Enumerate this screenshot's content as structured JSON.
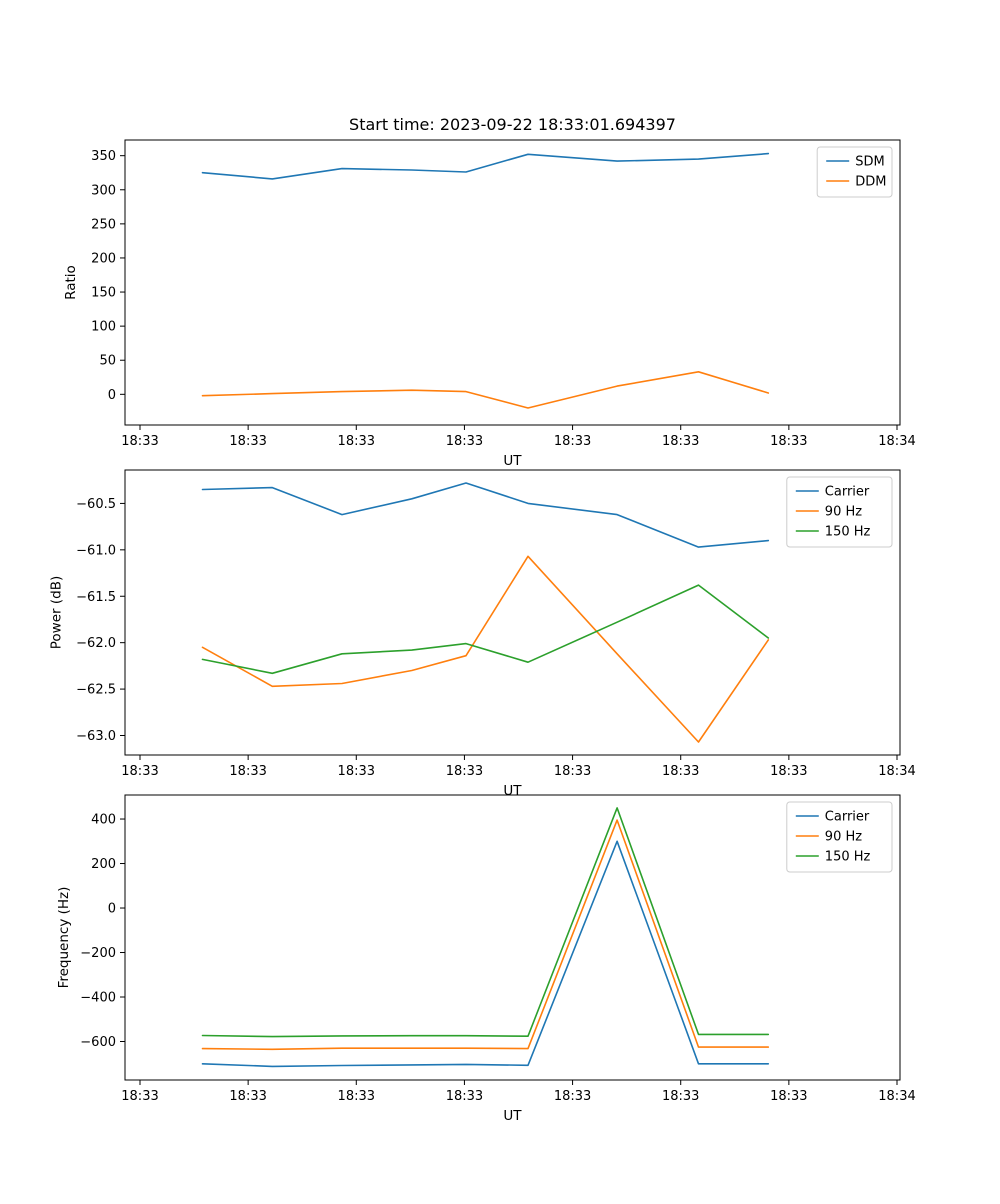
{
  "figure": {
    "title": "Start time: 2023-09-22 18:33:01.694397",
    "background": "#ffffff"
  },
  "colors": {
    "blue": "#1f77b4",
    "orange": "#ff7f0e",
    "green": "#2ca02c",
    "legend_border": "#cccccc",
    "axis": "#000000"
  },
  "chart_data": [
    {
      "name": "ratio",
      "type": "line",
      "title": "Start time: 2023-09-22 18:33:01.694397",
      "xlabel": "UT",
      "ylabel": "Ratio",
      "grid": false,
      "legend_position": "upper right",
      "xlim": [
        0,
        1
      ],
      "ylim": [
        -45,
        373
      ],
      "x": [
        0.1,
        0.19,
        0.28,
        0.37,
        0.44,
        0.52,
        0.635,
        0.74,
        0.83
      ],
      "yticks": [
        0,
        50,
        100,
        150,
        200,
        250,
        300,
        350
      ],
      "ytick_labels": [
        "0",
        "50",
        "100",
        "150",
        "200",
        "250",
        "300",
        "350"
      ],
      "xtick_labels": [
        "18:33",
        "18:33",
        "18:33",
        "18:33",
        "18:33",
        "18:33",
        "18:33",
        "18:34"
      ],
      "series": [
        {
          "name": "SDM",
          "color": "#1f77b4",
          "values": [
            325,
            316,
            331,
            329,
            326,
            352,
            342,
            345,
            353
          ]
        },
        {
          "name": "DDM",
          "color": "#ff7f0e",
          "values": [
            -2,
            1,
            4,
            6,
            4,
            -20,
            12,
            33,
            2
          ]
        }
      ]
    },
    {
      "name": "power",
      "type": "line",
      "title": "",
      "xlabel": "UT",
      "ylabel": "Power (dB)",
      "grid": false,
      "legend_position": "upper right",
      "xlim": [
        0,
        1
      ],
      "ylim": [
        -63.21,
        -60.14
      ],
      "x": [
        0.1,
        0.19,
        0.28,
        0.37,
        0.44,
        0.52,
        0.635,
        0.74,
        0.83
      ],
      "yticks": [
        -63.0,
        -62.5,
        -62.0,
        -61.5,
        -61.0,
        -60.5
      ],
      "ytick_labels": [
        "−63.0",
        "−62.5",
        "−62.0",
        "−61.5",
        "−61.0",
        "−60.5"
      ],
      "xtick_labels": [
        "18:33",
        "18:33",
        "18:33",
        "18:33",
        "18:33",
        "18:33",
        "18:33",
        "18:34"
      ],
      "series": [
        {
          "name": "Carrier",
          "color": "#1f77b4",
          "values": [
            -60.35,
            -60.33,
            -60.62,
            -60.45,
            -60.28,
            -60.5,
            -60.62,
            -60.97,
            -60.9
          ]
        },
        {
          "name": "90 Hz",
          "color": "#ff7f0e",
          "values": [
            -62.05,
            -62.47,
            -62.44,
            -62.3,
            -62.14,
            -61.07,
            -62.12,
            -63.07,
            -61.97
          ]
        },
        {
          "name": "150 Hz",
          "color": "#2ca02c",
          "values": [
            -62.18,
            -62.33,
            -62.12,
            -62.08,
            -62.01,
            -62.21,
            -61.78,
            -61.38,
            -61.95
          ]
        }
      ]
    },
    {
      "name": "frequency",
      "type": "line",
      "title": "",
      "xlabel": "UT",
      "ylabel": "Frequency (Hz)",
      "grid": false,
      "legend_position": "upper right",
      "xlim": [
        0,
        1
      ],
      "ylim": [
        -773,
        508
      ],
      "x": [
        0.1,
        0.19,
        0.28,
        0.37,
        0.44,
        0.52,
        0.635,
        0.74,
        0.83
      ],
      "yticks": [
        -600,
        -400,
        -200,
        0,
        200,
        400
      ],
      "ytick_labels": [
        "−600",
        "−400",
        "−200",
        "0",
        "200",
        "400"
      ],
      "xtick_labels": [
        "18:33",
        "18:33",
        "18:33",
        "18:33",
        "18:33",
        "18:33",
        "18:33",
        "18:34"
      ],
      "series": [
        {
          "name": "Carrier",
          "color": "#1f77b4",
          "values": [
            -700,
            -712,
            -708,
            -705,
            -703,
            -707,
            300,
            -700,
            -700
          ]
        },
        {
          "name": "90 Hz",
          "color": "#ff7f0e",
          "values": [
            -632,
            -635,
            -630,
            -630,
            -630,
            -632,
            395,
            -625,
            -625
          ]
        },
        {
          "name": "150 Hz",
          "color": "#2ca02c",
          "values": [
            -573,
            -578,
            -575,
            -574,
            -574,
            -576,
            450,
            -568,
            -568
          ]
        }
      ]
    }
  ]
}
